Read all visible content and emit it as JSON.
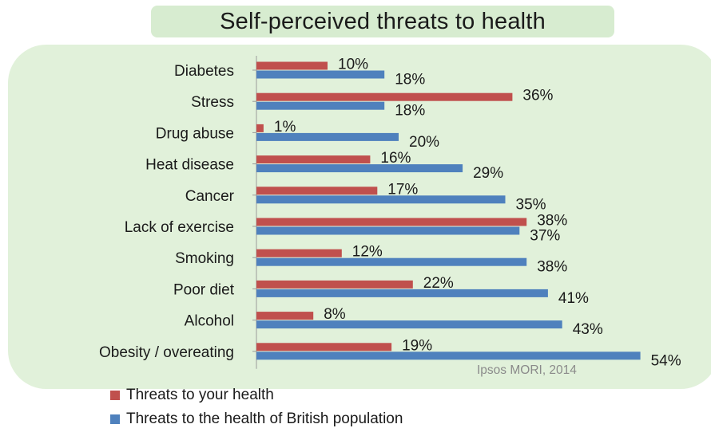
{
  "chart_data": {
    "type": "bar",
    "orientation": "horizontal",
    "title": "Self-perceived threats to health",
    "source": "Ipsos MORI, 2014",
    "categories": [
      "Diabetes",
      "Stress",
      "Drug abuse",
      "Heat disease",
      "Cancer",
      "Lack of exercise",
      "Smoking",
      "Poor diet",
      "Alcohol",
      "Obesity / overeating"
    ],
    "series": [
      {
        "name": "Threats to your health",
        "color": "#c0504d",
        "values": [
          10,
          36,
          1,
          16,
          17,
          38,
          12,
          22,
          8,
          19
        ]
      },
      {
        "name": "Threats to the health of British population",
        "color": "#4f81bd",
        "values": [
          18,
          18,
          20,
          29,
          35,
          37,
          38,
          41,
          43,
          54
        ]
      }
    ],
    "value_suffix": "%",
    "xlim": [
      0,
      54
    ],
    "legend_position": "bottom-left",
    "grid": false
  }
}
